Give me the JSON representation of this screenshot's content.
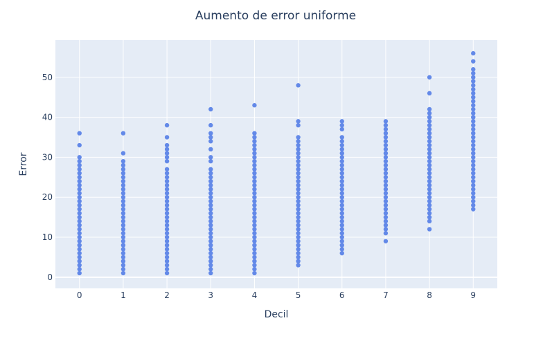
{
  "chart_data": {
    "type": "scatter",
    "title": "Aumento de error uniforme",
    "xlabel": "Decil",
    "ylabel": "Error",
    "xlim": [
      -0.55,
      9.55
    ],
    "ylim": [
      -2.8,
      59.3
    ],
    "x_ticks": [
      0,
      1,
      2,
      3,
      4,
      5,
      6,
      7,
      8,
      9
    ],
    "y_ticks": [
      0,
      10,
      20,
      30,
      40,
      50
    ],
    "grid": true,
    "legend": "none",
    "colors": {
      "plot_bg": "#e5ecf6",
      "grid": "#ffffff",
      "marker": "#6389e8",
      "text": "#2a3f5f"
    },
    "series": [
      {
        "x": 0,
        "y": [
          1,
          2,
          3,
          4,
          5,
          6,
          7,
          8,
          9,
          10,
          11,
          12,
          13,
          14,
          15,
          16,
          17,
          18,
          19,
          20,
          21,
          22,
          23,
          24,
          25,
          26,
          27,
          28,
          29,
          30,
          33,
          36
        ]
      },
      {
        "x": 1,
        "y": [
          1,
          2,
          3,
          4,
          5,
          6,
          7,
          8,
          9,
          10,
          11,
          12,
          13,
          14,
          15,
          16,
          17,
          18,
          19,
          20,
          21,
          22,
          23,
          24,
          25,
          26,
          27,
          28,
          29,
          31,
          36
        ]
      },
      {
        "x": 2,
        "y": [
          1,
          2,
          3,
          4,
          5,
          6,
          7,
          8,
          9,
          10,
          11,
          12,
          13,
          14,
          15,
          16,
          17,
          18,
          19,
          20,
          21,
          22,
          23,
          24,
          25,
          26,
          27,
          29,
          30,
          31,
          32,
          33,
          35,
          38
        ]
      },
      {
        "x": 3,
        "y": [
          1,
          2,
          3,
          4,
          5,
          6,
          7,
          8,
          9,
          10,
          11,
          12,
          13,
          14,
          15,
          16,
          17,
          18,
          19,
          20,
          21,
          22,
          23,
          24,
          25,
          26,
          27,
          29,
          30,
          32,
          34,
          35,
          36,
          38,
          42
        ]
      },
      {
        "x": 4,
        "y": [
          1,
          2,
          3,
          4,
          5,
          6,
          7,
          8,
          9,
          10,
          11,
          12,
          13,
          14,
          15,
          16,
          17,
          18,
          19,
          20,
          21,
          22,
          23,
          24,
          25,
          26,
          27,
          28,
          29,
          30,
          31,
          32,
          33,
          34,
          35,
          36,
          43
        ]
      },
      {
        "x": 5,
        "y": [
          3,
          4,
          5,
          6,
          7,
          8,
          9,
          10,
          11,
          12,
          13,
          14,
          15,
          16,
          17,
          18,
          19,
          20,
          21,
          22,
          23,
          24,
          25,
          26,
          27,
          28,
          29,
          30,
          31,
          32,
          33,
          34,
          35,
          38,
          39,
          48
        ]
      },
      {
        "x": 6,
        "y": [
          6,
          7,
          8,
          9,
          10,
          11,
          12,
          13,
          14,
          15,
          16,
          17,
          18,
          19,
          20,
          21,
          22,
          23,
          24,
          25,
          26,
          27,
          28,
          29,
          30,
          31,
          32,
          33,
          34,
          35,
          37,
          38,
          39
        ]
      },
      {
        "x": 7,
        "y": [
          9,
          11,
          12,
          13,
          14,
          15,
          16,
          17,
          18,
          19,
          20,
          21,
          22,
          23,
          24,
          25,
          26,
          27,
          28,
          29,
          30,
          31,
          32,
          33,
          34,
          35,
          36,
          37,
          38,
          39
        ]
      },
      {
        "x": 8,
        "y": [
          12,
          14,
          15,
          16,
          17,
          18,
          19,
          20,
          21,
          22,
          23,
          24,
          25,
          26,
          27,
          28,
          29,
          30,
          31,
          32,
          33,
          34,
          35,
          36,
          37,
          38,
          39,
          40,
          41,
          42,
          46,
          50
        ]
      },
      {
        "x": 9,
        "y": [
          17,
          18,
          19,
          20,
          21,
          22,
          23,
          24,
          25,
          26,
          27,
          28,
          29,
          30,
          31,
          32,
          33,
          34,
          35,
          36,
          37,
          38,
          39,
          40,
          41,
          42,
          43,
          44,
          45,
          46,
          47,
          48,
          49,
          50,
          51,
          52,
          54,
          56
        ]
      }
    ]
  }
}
